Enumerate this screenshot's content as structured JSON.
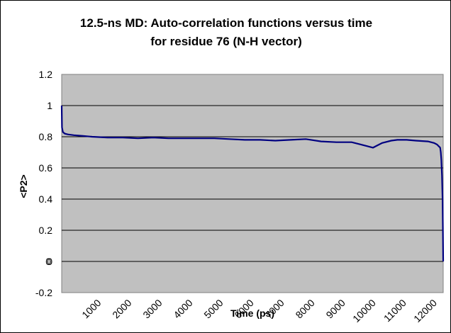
{
  "chart_data": {
    "type": "line",
    "title_line1": "12.5-ns MD: Auto-correlation functions versus time",
    "title_line2": "for residue 76 (N-H vector)",
    "xlabel": "Time (ps)",
    "ylabel": "<P2>",
    "xlim": [
      0,
      12500
    ],
    "ylim": [
      -0.2,
      1.2
    ],
    "x_ticks": [
      "1000",
      "2000",
      "3000",
      "4000",
      "5000",
      "6000",
      "7000",
      "8000",
      "9000",
      "10000",
      "11000",
      "12000"
    ],
    "x_first_label": "0",
    "y_ticks": [
      "-0.2",
      "0",
      "0.2",
      "0.4",
      "0.6",
      "0.8",
      "1",
      "1.2"
    ],
    "grid": "horizontal",
    "legend": "none",
    "plot_background": "#c0c0c0",
    "line_color": "#000080",
    "series": [
      {
        "x": [
          0,
          10,
          40,
          100,
          200,
          400,
          700,
          1000,
          1500,
          2000,
          2500,
          3000,
          3500,
          4000,
          4500,
          5000,
          5500,
          6000,
          6500,
          7000,
          7500,
          8000,
          8500,
          9000,
          9500,
          10000,
          10200,
          10500,
          10800,
          11000,
          11300,
          11600,
          12000,
          12200,
          12300,
          12350,
          12400,
          12420,
          12440,
          12460,
          12480,
          12490,
          12500
        ],
        "y": [
          1.0,
          0.86,
          0.83,
          0.82,
          0.815,
          0.81,
          0.805,
          0.8,
          0.795,
          0.795,
          0.79,
          0.795,
          0.79,
          0.79,
          0.79,
          0.79,
          0.785,
          0.78,
          0.78,
          0.775,
          0.78,
          0.785,
          0.77,
          0.765,
          0.765,
          0.74,
          0.73,
          0.76,
          0.775,
          0.78,
          0.78,
          0.775,
          0.77,
          0.76,
          0.75,
          0.74,
          0.73,
          0.7,
          0.65,
          0.55,
          0.4,
          0.2,
          0.0
        ]
      }
    ]
  }
}
